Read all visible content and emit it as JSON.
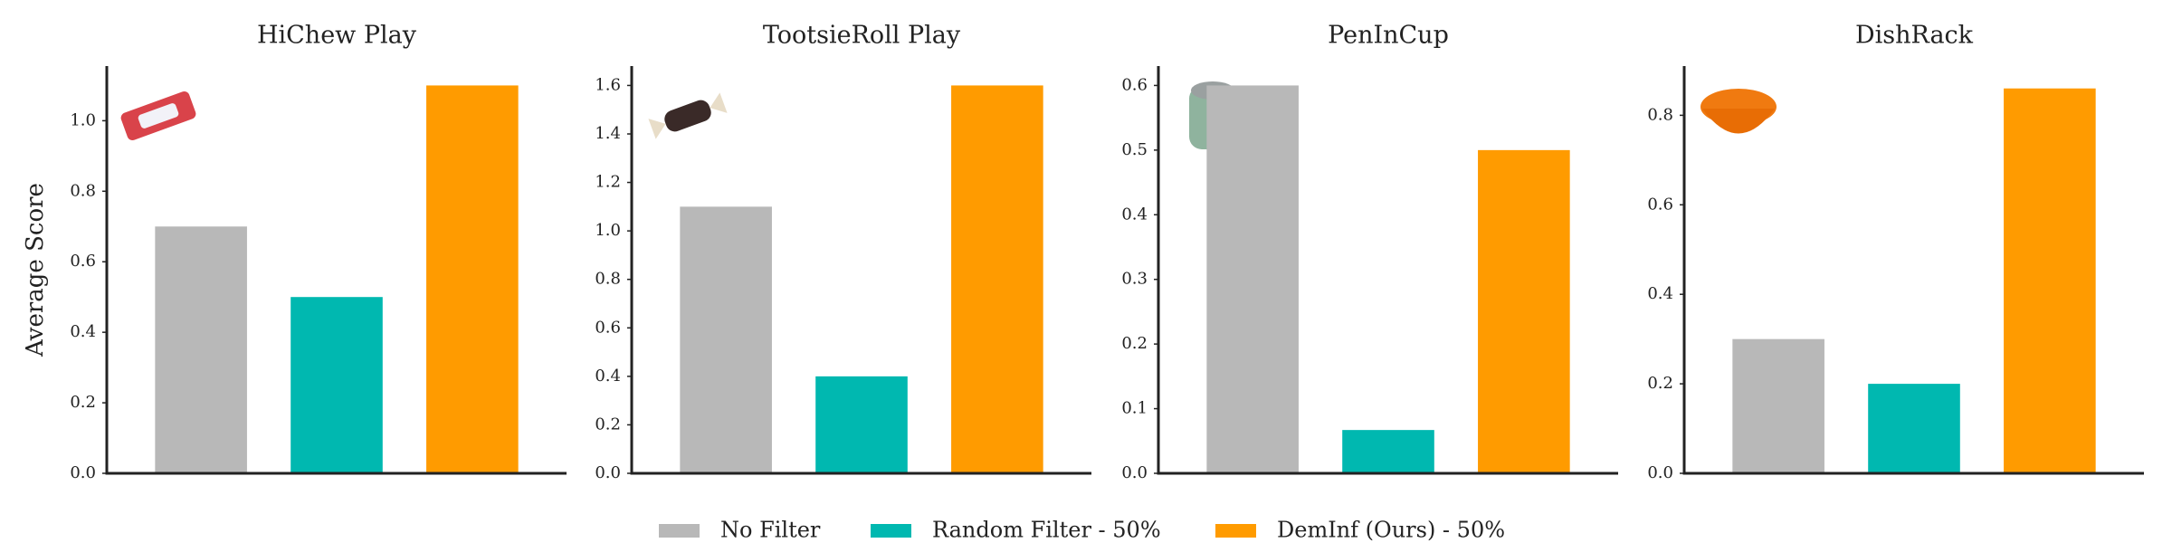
{
  "legend": {
    "entries": [
      {
        "name": "No Filter",
        "color": "#b8b8b8"
      },
      {
        "name": "Random Filter - 50%",
        "color": "#00b8b0"
      },
      {
        "name": "DemInf (Ours) - 50%",
        "color": "#ff9b00"
      }
    ]
  },
  "y_label": "Average Score",
  "chart_data": [
    {
      "type": "bar",
      "title": "HiChew Play",
      "values": [
        0.7,
        0.5,
        1.1
      ],
      "ylim": [
        0,
        1.155
      ],
      "yticks": [
        {
          "value": 0,
          "label": "0.0"
        },
        0.2,
        0.4,
        0.6,
        0.8,
        {
          "value": 1,
          "label": "1.0"
        }
      ]
    },
    {
      "type": "bar",
      "title": "TootsieRoll Play",
      "values": [
        1.1,
        0.4,
        1.6
      ],
      "ylim": [
        0,
        1.68
      ],
      "yticks": [
        {
          "value": 0,
          "label": "0.0"
        },
        0.2,
        0.4,
        0.6,
        0.8,
        {
          "value": 1,
          "label": "1.0"
        },
        1.2,
        1.4,
        1.6
      ]
    },
    {
      "type": "bar",
      "title": "PenInCup",
      "values": [
        0.6,
        0.067,
        0.5
      ],
      "ylim": [
        0,
        0.63
      ],
      "yticks": [
        {
          "value": 0,
          "label": "0.0"
        },
        0.1,
        0.2,
        0.3,
        0.4,
        0.5,
        0.6
      ]
    },
    {
      "type": "bar",
      "title": "DishRack",
      "values": [
        0.3,
        0.2,
        0.86
      ],
      "ylim": [
        0,
        0.91
      ],
      "yticks": [
        {
          "value": 0,
          "label": "0.0"
        },
        0.2,
        0.4,
        0.6,
        0.8
      ]
    }
  ]
}
